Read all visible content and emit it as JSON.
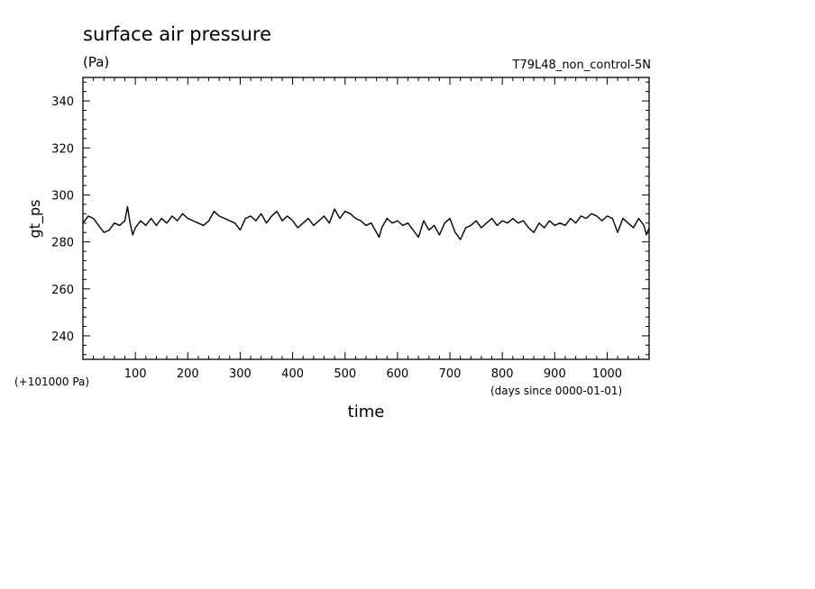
{
  "chart_data": {
    "type": "line",
    "title": "surface air pressure",
    "units": "(Pa)",
    "run_label": "T79L48_non_control-5N",
    "ylabel": "gt_ps",
    "xlabel": "time",
    "y_offset_label": "(+101000 Pa)",
    "x_units_label": "(days since 0000-01-01)",
    "xlim": [
      0,
      1080
    ],
    "ylim": [
      230,
      350
    ],
    "x_ticks": [
      100,
      200,
      300,
      400,
      500,
      600,
      700,
      800,
      900,
      1000
    ],
    "y_ticks": [
      240,
      260,
      280,
      300,
      320,
      340
    ],
    "grid": false,
    "series": [
      {
        "color": "#000000",
        "x": [
          0,
          10,
          20,
          30,
          40,
          50,
          60,
          70,
          80,
          85,
          90,
          95,
          100,
          110,
          120,
          130,
          140,
          150,
          160,
          170,
          180,
          190,
          200,
          210,
          220,
          230,
          240,
          250,
          260,
          270,
          280,
          290,
          300,
          310,
          320,
          330,
          340,
          350,
          360,
          370,
          375,
          380,
          390,
          400,
          410,
          420,
          430,
          440,
          450,
          460,
          470,
          480,
          490,
          500,
          510,
          520,
          530,
          540,
          550,
          560,
          565,
          570,
          580,
          590,
          600,
          610,
          620,
          630,
          640,
          650,
          660,
          670,
          680,
          690,
          700,
          710,
          720,
          730,
          740,
          750,
          760,
          770,
          780,
          790,
          800,
          810,
          820,
          830,
          840,
          850,
          860,
          870,
          880,
          890,
          900,
          910,
          920,
          930,
          940,
          950,
          960,
          970,
          980,
          990,
          1000,
          1010,
          1020,
          1030,
          1040,
          1050,
          1060,
          1070,
          1075,
          1080
        ],
        "values": [
          288,
          291,
          290,
          287,
          284,
          285,
          288,
          287,
          289,
          295,
          288,
          283,
          286,
          289,
          287,
          290,
          287,
          290,
          288,
          291,
          289,
          292,
          290,
          289,
          288,
          287,
          289,
          293,
          291,
          290,
          289,
          288,
          285,
          290,
          291,
          289,
          292,
          288,
          291,
          293,
          291,
          289,
          291,
          289,
          286,
          288,
          290,
          287,
          289,
          291,
          288,
          294,
          290,
          293,
          292,
          290,
          289,
          287,
          288,
          284,
          282,
          286,
          290,
          288,
          289,
          287,
          288,
          285,
          282,
          289,
          285,
          287,
          283,
          288,
          290,
          284,
          281,
          286,
          287,
          289,
          286,
          288,
          290,
          287,
          289,
          288,
          290,
          288,
          289,
          286,
          284,
          288,
          286,
          289,
          287,
          288,
          287,
          290,
          288,
          291,
          290,
          292,
          291,
          289,
          291,
          290,
          284,
          290,
          288,
          286,
          290,
          287,
          283,
          286
        ]
      }
    ]
  }
}
